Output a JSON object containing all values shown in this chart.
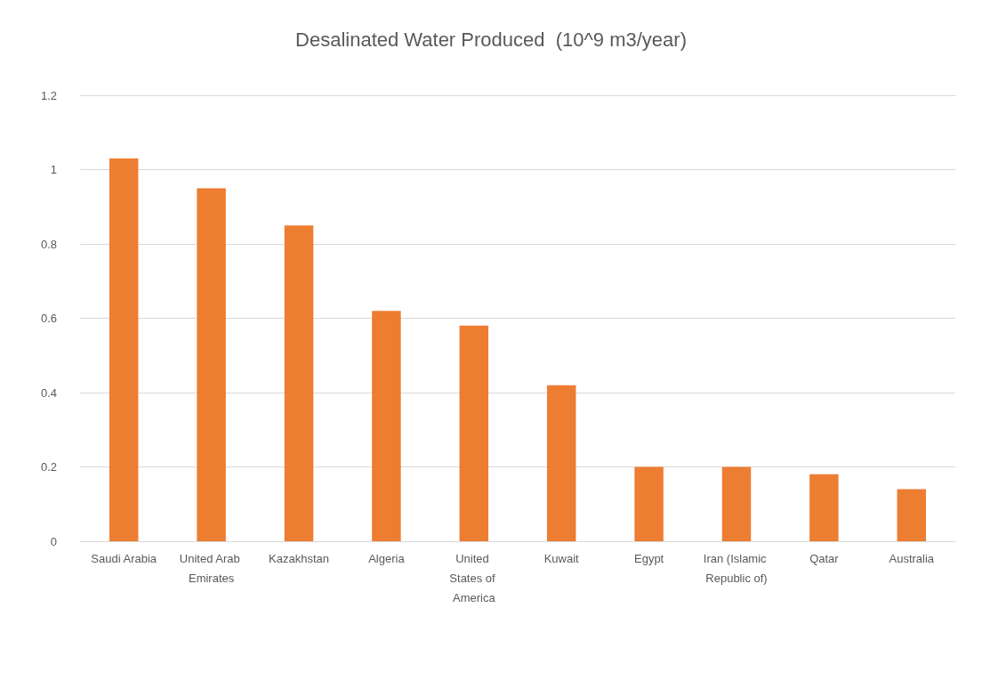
{
  "chart_data": {
    "type": "bar",
    "title": "Desalinated Water Produced  (10^9 m3/year)",
    "categories": [
      "Saudi Arabia",
      "United Arab Emirates",
      "Kazakhstan",
      "Algeria",
      "United States of America",
      "Kuwait",
      "Egypt",
      "Iran (Islamic Republic of)",
      "Qatar",
      "Australia"
    ],
    "values": [
      1.03,
      0.95,
      0.85,
      0.62,
      0.58,
      0.42,
      0.2,
      0.2,
      0.18,
      0.14
    ],
    "color": "#ed7d31",
    "ylim": [
      0,
      1.2
    ],
    "yticks": [
      0,
      0.2,
      0.4,
      0.6,
      0.8,
      1,
      1.2
    ],
    "grid": "y"
  }
}
